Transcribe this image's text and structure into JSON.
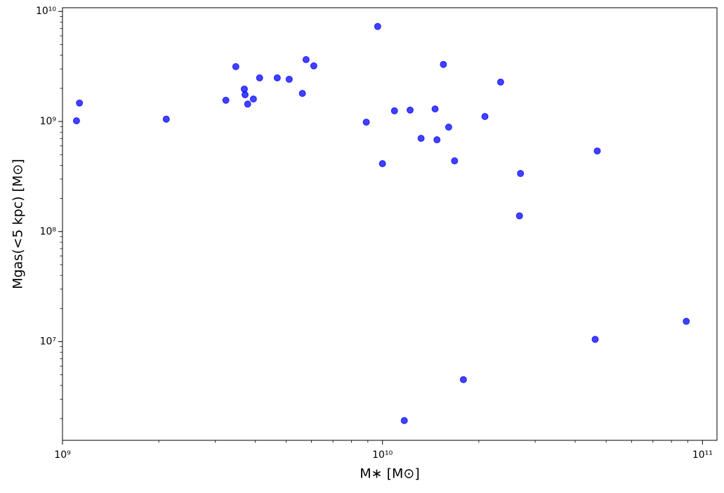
{
  "chart_data": {
    "type": "scatter",
    "x_label": "M∗ [M⊙]",
    "y_label": "Mgas(<5 kpc) [M⊙]",
    "x_scale": "log",
    "y_scale": "log",
    "xlim": [
      1000000000,
      111000000000
    ],
    "ylim": [
      1270000,
      10800000000
    ],
    "xticks": [
      {
        "value": 1000000000,
        "label": "10⁹"
      },
      {
        "value": 10000000000,
        "label": "10¹⁰"
      },
      {
        "value": 100000000000,
        "label": "10¹¹"
      }
    ],
    "yticks": [
      {
        "value": 10000000,
        "label": "10⁷"
      },
      {
        "value": 100000000,
        "label": "10⁸"
      },
      {
        "value": 1000000000,
        "label": "10⁹"
      },
      {
        "value": 10000000000,
        "label": "10¹⁰"
      }
    ],
    "color": "#0000ff",
    "x": [
      1106000000.0,
      1130000000.0,
      2110000000.0,
      3240000000.0,
      3480000000.0,
      3700000000.0,
      3720000000.0,
      3790000000.0,
      3950000000.0,
      4130000000.0,
      4690000000.0,
      5110000000.0,
      5620000000.0,
      5770000000.0,
      6100000000.0,
      8900000000.0,
      9660000000.0,
      10000000000.0,
      10900000000.0,
      11700000000.0,
      12200000000.0,
      13200000000.0,
      14600000000.0,
      14800000000.0,
      15500000000.0,
      16100000000.0,
      16800000000.0,
      17900000000.0,
      20900000000.0,
      23400000000.0,
      26800000000.0,
      27000000000.0,
      46200000000.0,
      46900000000.0,
      89000000000.0
    ],
    "values": [
      1015000000.0,
      1470000000.0,
      1050000000.0,
      1560000000.0,
      3150000000.0,
      1970000000.0,
      1750000000.0,
      1440000000.0,
      1600000000.0,
      2490000000.0,
      2490000000.0,
      2420000000.0,
      1800000000.0,
      3650000000.0,
      3200000000.0,
      986000000.0,
      7300000000.0,
      414000000.0,
      1250000000.0,
      1920000.0,
      1270000000.0,
      703000000.0,
      1300000000.0,
      682000000.0,
      3300000000.0,
      889000000.0,
      439000000.0,
      4520000.0,
      1110000000.0,
      2280000000.0,
      139000000.0,
      337000000.0,
      10500000.0,
      540000000.0,
      15300000.0
    ]
  }
}
